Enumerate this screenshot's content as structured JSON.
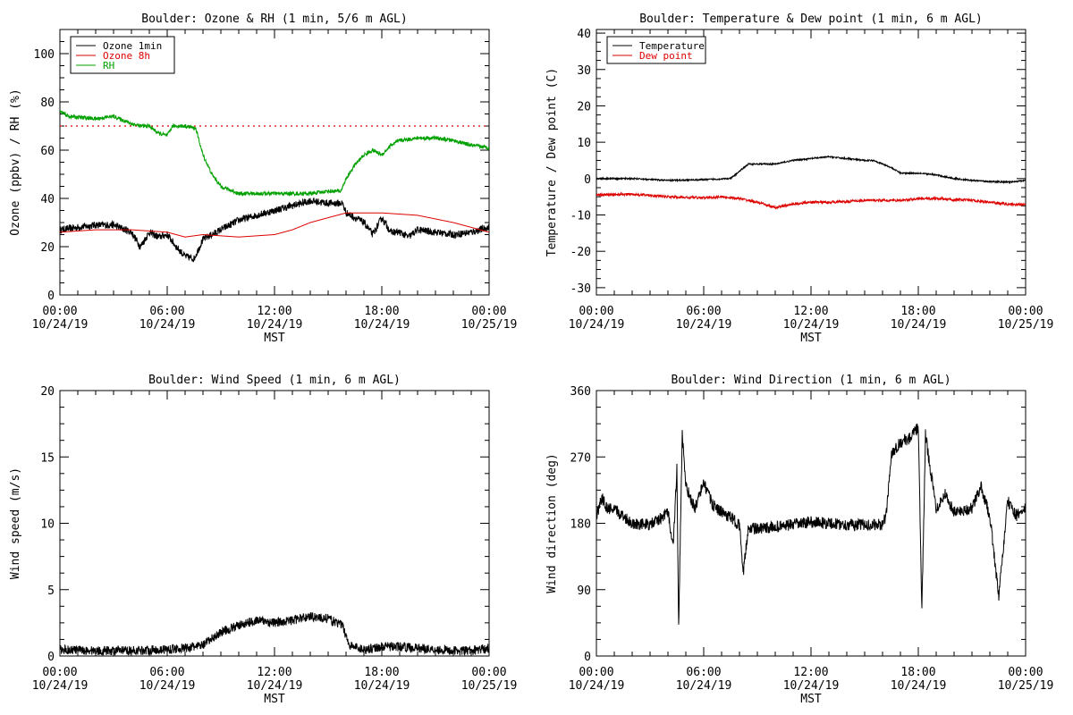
{
  "chart_data": [
    {
      "type": "line",
      "title": "Boulder: Ozone & RH (1 min, 5/6 m AGL)",
      "xlabel": "MST",
      "ylabel": "Ozone (ppbv) / RH (%)",
      "xlim_hours": [
        0,
        24
      ],
      "ylim": [
        0,
        110
      ],
      "y_ticks": [
        0,
        20,
        40,
        60,
        80,
        100
      ],
      "x_ticks": [
        {
          "hour": 0,
          "time": "00:00",
          "date": "10/24/19"
        },
        {
          "hour": 6,
          "time": "06:00",
          "date": "10/24/19"
        },
        {
          "hour": 12,
          "time": "12:00",
          "date": "10/24/19"
        },
        {
          "hour": 18,
          "time": "18:00",
          "date": "10/24/19"
        },
        {
          "hour": 24,
          "time": "00:00",
          "date": "10/25/19"
        }
      ],
      "legend_position": "top-left",
      "reference_line": {
        "y": 70,
        "color": "#dd0000",
        "style": "dotted"
      },
      "series": [
        {
          "name": "Ozone 1min",
          "color": "#000000",
          "noise": 1.5,
          "points": [
            [
              0,
              27
            ],
            [
              1,
              28
            ],
            [
              2,
              29
            ],
            [
              3,
              29
            ],
            [
              4,
              26
            ],
            [
              4.5,
              20
            ],
            [
              5,
              26
            ],
            [
              5.5,
              24
            ],
            [
              6,
              25
            ],
            [
              6.5,
              20
            ],
            [
              7,
              16
            ],
            [
              7.5,
              15
            ],
            [
              8,
              23
            ],
            [
              9,
              27
            ],
            [
              10,
              31
            ],
            [
              11,
              33
            ],
            [
              12,
              35
            ],
            [
              13,
              37
            ],
            [
              14,
              39
            ],
            [
              15,
              38
            ],
            [
              15.8,
              38
            ],
            [
              16,
              34
            ],
            [
              17,
              30
            ],
            [
              17.5,
              25
            ],
            [
              18,
              32
            ],
            [
              18.5,
              26
            ],
            [
              19,
              26
            ],
            [
              19.5,
              24
            ],
            [
              20,
              27
            ],
            [
              21,
              26
            ],
            [
              22,
              25
            ],
            [
              23,
              26
            ],
            [
              24,
              28
            ]
          ]
        },
        {
          "name": "Ozone 8h",
          "color": "#dd0000",
          "noise": 0,
          "points": [
            [
              0,
              26
            ],
            [
              2,
              27
            ],
            [
              4,
              27
            ],
            [
              6,
              26
            ],
            [
              7,
              24
            ],
            [
              8,
              25
            ],
            [
              10,
              24
            ],
            [
              12,
              25
            ],
            [
              13,
              27
            ],
            [
              14,
              30
            ],
            [
              15,
              32
            ],
            [
              16,
              34
            ],
            [
              17,
              34
            ],
            [
              18,
              34
            ],
            [
              19,
              33.5
            ],
            [
              20,
              33
            ],
            [
              21,
              31.5
            ],
            [
              22,
              30
            ],
            [
              23,
              28
            ],
            [
              24,
              26
            ]
          ]
        },
        {
          "name": "RH",
          "color": "#00a000",
          "noise": 0.8,
          "points": [
            [
              0,
              76
            ],
            [
              0.5,
              74
            ],
            [
              2,
              73
            ],
            [
              3,
              74
            ],
            [
              4,
              71
            ],
            [
              4.5,
              70
            ],
            [
              5,
              70
            ],
            [
              5.5,
              67
            ],
            [
              6,
              66
            ],
            [
              6.3,
              70
            ],
            [
              7,
              70
            ],
            [
              7.6,
              69
            ],
            [
              8,
              58
            ],
            [
              8.5,
              50
            ],
            [
              9,
              45
            ],
            [
              10,
              42
            ],
            [
              11,
              42
            ],
            [
              12,
              42
            ],
            [
              13,
              42
            ],
            [
              14,
              42
            ],
            [
              15,
              43
            ],
            [
              15.7,
              43
            ],
            [
              16,
              48
            ],
            [
              16.5,
              54
            ],
            [
              17,
              58
            ],
            [
              17.5,
              60
            ],
            [
              18,
              58
            ],
            [
              18.5,
              62
            ],
            [
              19,
              64
            ],
            [
              20,
              65
            ],
            [
              21,
              65
            ],
            [
              22,
              64
            ],
            [
              23,
              62
            ],
            [
              24,
              61
            ]
          ]
        }
      ]
    },
    {
      "type": "line",
      "title": "Boulder: Temperature & Dew point (1 min, 6 m AGL)",
      "xlabel": "MST",
      "ylabel": "Temperature / Dew point (C)",
      "xlim_hours": [
        0,
        24
      ],
      "ylim": [
        -32,
        41
      ],
      "y_ticks": [
        -30,
        -20,
        -10,
        0,
        10,
        20,
        30,
        40
      ],
      "x_ticks": [
        {
          "hour": 0,
          "time": "00:00",
          "date": "10/24/19"
        },
        {
          "hour": 6,
          "time": "06:00",
          "date": "10/24/19"
        },
        {
          "hour": 12,
          "time": "12:00",
          "date": "10/24/19"
        },
        {
          "hour": 18,
          "time": "18:00",
          "date": "10/24/19"
        },
        {
          "hour": 24,
          "time": "00:00",
          "date": "10/25/19"
        }
      ],
      "legend_position": "top-left",
      "series": [
        {
          "name": "Temperature",
          "color": "#000000",
          "noise": 0.2,
          "points": [
            [
              0,
              0
            ],
            [
              2,
              0
            ],
            [
              4,
              -0.5
            ],
            [
              6,
              -0.3
            ],
            [
              7.5,
              0
            ],
            [
              8,
              2
            ],
            [
              8.5,
              4
            ],
            [
              9,
              4
            ],
            [
              10,
              4
            ],
            [
              11,
              5
            ],
            [
              12,
              5.5
            ],
            [
              13,
              6
            ],
            [
              14,
              5.5
            ],
            [
              15,
              5
            ],
            [
              15.5,
              5
            ],
            [
              16,
              4
            ],
            [
              16.5,
              3
            ],
            [
              17,
              1.5
            ],
            [
              18,
              1.5
            ],
            [
              19,
              1
            ],
            [
              20,
              0
            ],
            [
              21,
              -0.5
            ],
            [
              22,
              -0.8
            ],
            [
              23,
              -1
            ],
            [
              24,
              -0.5
            ]
          ]
        },
        {
          "name": "Dew point",
          "color": "#dd0000",
          "noise": 0.35,
          "points": [
            [
              0,
              -4.5
            ],
            [
              2,
              -4.3
            ],
            [
              3,
              -4.6
            ],
            [
              4,
              -5
            ],
            [
              5,
              -5.2
            ],
            [
              6,
              -5.3
            ],
            [
              7,
              -5
            ],
            [
              8,
              -5.5
            ],
            [
              9,
              -6.5
            ],
            [
              10,
              -8
            ],
            [
              11,
              -7
            ],
            [
              12,
              -6.5
            ],
            [
              13,
              -6.5
            ],
            [
              14,
              -6.3
            ],
            [
              15,
              -6
            ],
            [
              16,
              -6
            ],
            [
              17,
              -6
            ],
            [
              18,
              -5.5
            ],
            [
              19,
              -5.5
            ],
            [
              20,
              -5.8
            ],
            [
              21,
              -6
            ],
            [
              22,
              -6.5
            ],
            [
              23,
              -7
            ],
            [
              24,
              -7.2
            ]
          ]
        }
      ]
    },
    {
      "type": "line",
      "title": "Boulder: Wind Speed (1 min, 6 m AGL)",
      "xlabel": "MST",
      "ylabel": "Wind speed (m/s)",
      "xlim_hours": [
        0,
        24
      ],
      "ylim": [
        0,
        20
      ],
      "y_ticks": [
        0,
        5,
        10,
        15,
        20
      ],
      "x_ticks": [
        {
          "hour": 0,
          "time": "00:00",
          "date": "10/24/19"
        },
        {
          "hour": 6,
          "time": "06:00",
          "date": "10/24/19"
        },
        {
          "hour": 12,
          "time": "12:00",
          "date": "10/24/19"
        },
        {
          "hour": 18,
          "time": "18:00",
          "date": "10/24/19"
        },
        {
          "hour": 24,
          "time": "00:00",
          "date": "10/25/19"
        }
      ],
      "series": [
        {
          "name": "",
          "color": "#000000",
          "noise": 0.35,
          "points": [
            [
              0,
              0.5
            ],
            [
              2,
              0.4
            ],
            [
              4,
              0.4
            ],
            [
              6,
              0.5
            ],
            [
              7,
              0.6
            ],
            [
              8,
              0.8
            ],
            [
              8.5,
              1.3
            ],
            [
              9,
              1.8
            ],
            [
              10,
              2.3
            ],
            [
              11,
              2.7
            ],
            [
              12,
              2.5
            ],
            [
              13,
              2.7
            ],
            [
              14,
              3.0
            ],
            [
              15,
              2.8
            ],
            [
              15.8,
              2.3
            ],
            [
              16.2,
              0.8
            ],
            [
              17,
              0.5
            ],
            [
              18,
              0.7
            ],
            [
              19,
              0.7
            ],
            [
              20,
              0.6
            ],
            [
              21,
              0.5
            ],
            [
              22,
              0.4
            ],
            [
              23,
              0.4
            ],
            [
              24,
              0.6
            ]
          ]
        }
      ]
    },
    {
      "type": "line",
      "title": "Boulder: Wind Direction (1 min, 6 m AGL)",
      "xlabel": "MST",
      "ylabel": "Wind direction (deg)",
      "xlim_hours": [
        0,
        24
      ],
      "ylim": [
        0,
        360
      ],
      "y_ticks": [
        0,
        90,
        180,
        270,
        360
      ],
      "x_ticks": [
        {
          "hour": 0,
          "time": "00:00",
          "date": "10/24/19"
        },
        {
          "hour": 6,
          "time": "06:00",
          "date": "10/24/19"
        },
        {
          "hour": 12,
          "time": "12:00",
          "date": "10/24/19"
        },
        {
          "hour": 18,
          "time": "18:00",
          "date": "10/24/19"
        },
        {
          "hour": 24,
          "time": "00:00",
          "date": "10/25/19"
        }
      ],
      "series": [
        {
          "name": "",
          "color": "#000000",
          "noise": 8,
          "points": [
            [
              0,
              190
            ],
            [
              0.3,
              215
            ],
            [
              0.6,
              200
            ],
            [
              1,
              198
            ],
            [
              1.5,
              190
            ],
            [
              2,
              180
            ],
            [
              3,
              178
            ],
            [
              3.5,
              185
            ],
            [
              4,
              195
            ],
            [
              4.3,
              150
            ],
            [
              4.5,
              255
            ],
            [
              4.6,
              40
            ],
            [
              4.8,
              300
            ],
            [
              5,
              230
            ],
            [
              5.5,
              200
            ],
            [
              6,
              235
            ],
            [
              6.5,
              205
            ],
            [
              7,
              195
            ],
            [
              7.5,
              188
            ],
            [
              8,
              178
            ],
            [
              8.2,
              110
            ],
            [
              8.5,
              175
            ],
            [
              9,
              172
            ],
            [
              10,
              175
            ],
            [
              11,
              178
            ],
            [
              12,
              182
            ],
            [
              13,
              180
            ],
            [
              14,
              178
            ],
            [
              15,
              178
            ],
            [
              16,
              178
            ],
            [
              16.2,
              190
            ],
            [
              16.5,
              275
            ],
            [
              17,
              290
            ],
            [
              17.5,
              295
            ],
            [
              18,
              310
            ],
            [
              18.2,
              60
            ],
            [
              18.4,
              300
            ],
            [
              19,
              200
            ],
            [
              19.5,
              220
            ],
            [
              20,
              195
            ],
            [
              21,
              200
            ],
            [
              21.5,
              230
            ],
            [
              22,
              190
            ],
            [
              22.5,
              80
            ],
            [
              23,
              210
            ],
            [
              23.5,
              190
            ],
            [
              24,
              200
            ]
          ]
        }
      ]
    }
  ]
}
